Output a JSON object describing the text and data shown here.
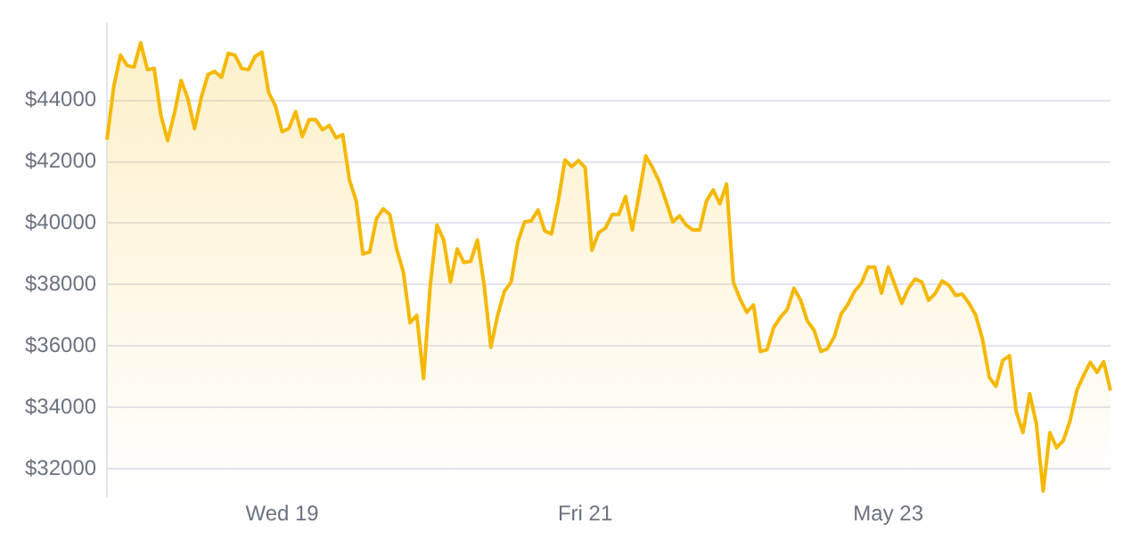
{
  "chart_data": {
    "type": "area",
    "color": "#f5b800",
    "categories": [
      null,
      null,
      null,
      null,
      null,
      null,
      null,
      null,
      null,
      null,
      null,
      null,
      null,
      null,
      null,
      null,
      null,
      null,
      null,
      null,
      null,
      null,
      null,
      null,
      null,
      null,
      "Wed 19",
      null,
      null,
      null,
      null,
      null,
      null,
      null,
      null,
      null,
      null,
      null,
      null,
      null,
      null,
      null,
      null,
      null,
      null,
      null,
      null,
      null,
      null,
      null,
      null,
      null,
      null,
      null,
      null,
      null,
      null,
      null,
      null,
      null,
      null,
      null,
      null,
      null,
      null,
      null,
      null,
      null,
      null,
      null,
      null,
      "Fri 21",
      null,
      null,
      null,
      null,
      null,
      null,
      null,
      null,
      null,
      null,
      null,
      null,
      null,
      null,
      null,
      null,
      null,
      null,
      null,
      null,
      null,
      null,
      null,
      null,
      null,
      null,
      null,
      null,
      null,
      null,
      null,
      null,
      null,
      null,
      null,
      null,
      null,
      null,
      null,
      null,
      null,
      null,
      null,
      null,
      "May 23",
      null,
      null,
      null,
      null,
      null,
      null,
      null,
      null,
      null,
      null,
      null,
      null,
      null,
      null,
      null,
      null,
      null,
      null,
      null,
      null,
      null,
      null,
      null,
      null,
      null,
      null,
      null,
      null,
      null,
      null,
      null,
      null,
      null
    ],
    "values": [
      42720,
      44450,
      45470,
      45130,
      45080,
      45870,
      45000,
      45040,
      43510,
      42690,
      43570,
      44650,
      44060,
      43080,
      44100,
      44840,
      44940,
      44750,
      45530,
      45470,
      45040,
      45000,
      45430,
      45570,
      44250,
      43820,
      42980,
      43080,
      43630,
      42820,
      43370,
      43370,
      43040,
      43180,
      42780,
      42880,
      41410,
      40720,
      39000,
      39060,
      40140,
      40470,
      40280,
      39160,
      38410,
      36760,
      37000,
      34940,
      37980,
      39940,
      39450,
      38080,
      39160,
      38720,
      38760,
      39450,
      37980,
      35960,
      37000,
      37780,
      38080,
      39390,
      40040,
      40080,
      40430,
      39750,
      39650,
      40720,
      42060,
      41840,
      42040,
      41810,
      39120,
      39690,
      39840,
      40280,
      40290,
      40870,
      39780,
      40920,
      42190,
      41810,
      41350,
      40720,
      40040,
      40240,
      39940,
      39780,
      39780,
      40720,
      41080,
      40630,
      41280,
      38080,
      37530,
      37100,
      37340,
      35820,
      35880,
      36610,
      36940,
      37190,
      37880,
      37490,
      36810,
      36510,
      35820,
      35920,
      36310,
      37040,
      37350,
      37780,
      38040,
      38570,
      38570,
      37720,
      38570,
      37980,
      37390,
      37880,
      38180,
      38080,
      37490,
      37720,
      38120,
      37980,
      37650,
      37690,
      37390,
      37000,
      36220,
      34980,
      34690,
      35530,
      35690,
      33870,
      33180,
      34450,
      33470,
      31280,
      33180,
      32690,
      32920,
      33570,
      34550,
      35040,
      35470,
      35140,
      35490,
      34550
    ],
    "ylim": [
      31100,
      46500
    ],
    "yticks": [
      {
        "value": 32000,
        "label": "$32000"
      },
      {
        "value": 34000,
        "label": "$34000"
      },
      {
        "value": 36000,
        "label": "$36000"
      },
      {
        "value": 38000,
        "label": "$38000"
      },
      {
        "value": 40000,
        "label": "$40000"
      },
      {
        "value": 42000,
        "label": "$42000"
      },
      {
        "value": 44000,
        "label": "$44000"
      }
    ],
    "grid": "y",
    "legend": false,
    "marker": "none",
    "line_style": "solid"
  }
}
